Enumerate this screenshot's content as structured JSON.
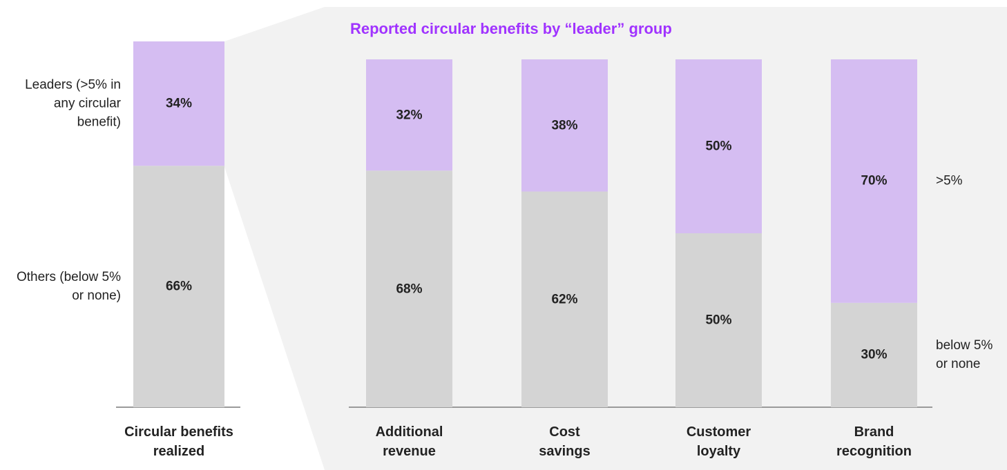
{
  "chart_data": [
    {
      "type": "stacked_bar",
      "categories": [
        "Circular benefits realized"
      ],
      "series": [
        {
          "name": "Others (below 5% or none)",
          "color": "#d4d4d4",
          "values": [
            66
          ],
          "value_labels": [
            "66%"
          ]
        },
        {
          "name": "Leaders (>5% in any circular benefit)",
          "color": "#d5bdf2",
          "values": [
            34
          ],
          "value_labels": [
            "34%"
          ]
        }
      ],
      "ylim": [
        0,
        100
      ]
    },
    {
      "type": "stacked_bar",
      "title": "Reported circular benefits by “leader” group",
      "categories": [
        "Additional revenue",
        "Cost savings",
        "Customer loyalty",
        "Brand recognition"
      ],
      "series": [
        {
          "name": "below 5% or none",
          "color": "#d4d4d4",
          "values": [
            68,
            62,
            50,
            30
          ],
          "value_labels": [
            "68%",
            "62%",
            "50%",
            "30%"
          ]
        },
        {
          "name": ">5%",
          "color": "#d5bdf2",
          "values": [
            32,
            38,
            50,
            70
          ],
          "value_labels": [
            "32%",
            "38%",
            "50%",
            "70%"
          ]
        }
      ],
      "ylim": [
        0,
        100
      ],
      "legend": "right"
    }
  ]
}
